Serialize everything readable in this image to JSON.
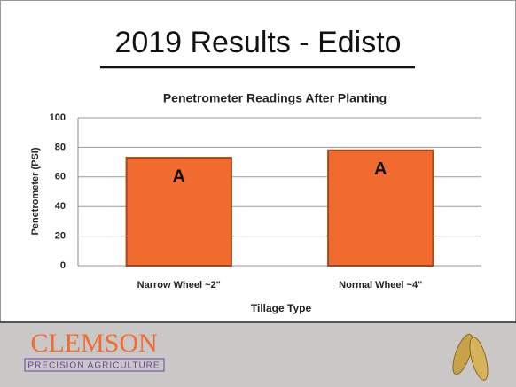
{
  "slide_title": "2019 Results - Edisto",
  "chart_data": {
    "type": "bar",
    "title": "Penetrometer Readings After Planting",
    "x_label": "Tillage Type",
    "y_label": "Penetrometer (PSI)",
    "categories": [
      "Narrow Wheel ~2\"",
      "Normal Wheel ~4\""
    ],
    "values": [
      73,
      78
    ],
    "annotations": [
      "A",
      "A"
    ],
    "color": "#f26b2e",
    "ylim": [
      0,
      100
    ],
    "yticks": [
      0,
      20,
      40,
      60,
      80,
      100
    ],
    "grid": true
  },
  "footer": {
    "logo": "CLEMSON",
    "logo_subtitle": "PRECISION AGRICULTURE"
  }
}
